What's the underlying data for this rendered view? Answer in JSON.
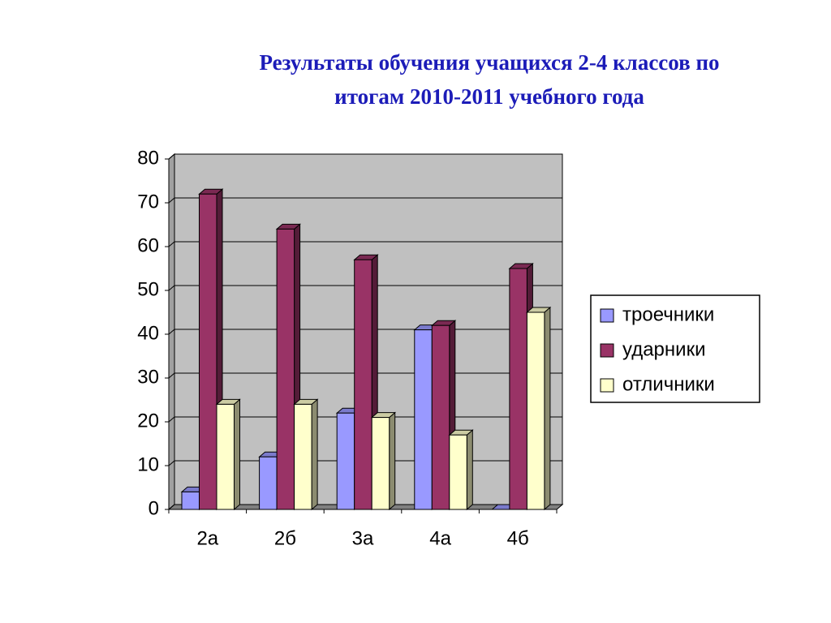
{
  "chart_data": {
    "type": "bar3d",
    "title": [
      "Результаты обучения учащихся 2-4 классов по",
      "итогам 2010-2011 учебного года"
    ],
    "categories": [
      "2а",
      "2б",
      "3а",
      "4а",
      "4б"
    ],
    "series": [
      {
        "name": "троечники",
        "color": "#9999ff",
        "values": [
          4,
          12,
          22,
          41,
          0
        ]
      },
      {
        "name": "ударники",
        "color": "#993366",
        "values": [
          72,
          64,
          57,
          42,
          55
        ]
      },
      {
        "name": "отличники",
        "color": "#ffffcc",
        "values": [
          24,
          24,
          21,
          17,
          45
        ]
      }
    ],
    "ylim": [
      0,
      80
    ],
    "yticks": [
      0,
      10,
      20,
      30,
      40,
      50,
      60,
      70,
      80
    ],
    "grid": true,
    "legend": "right"
  }
}
